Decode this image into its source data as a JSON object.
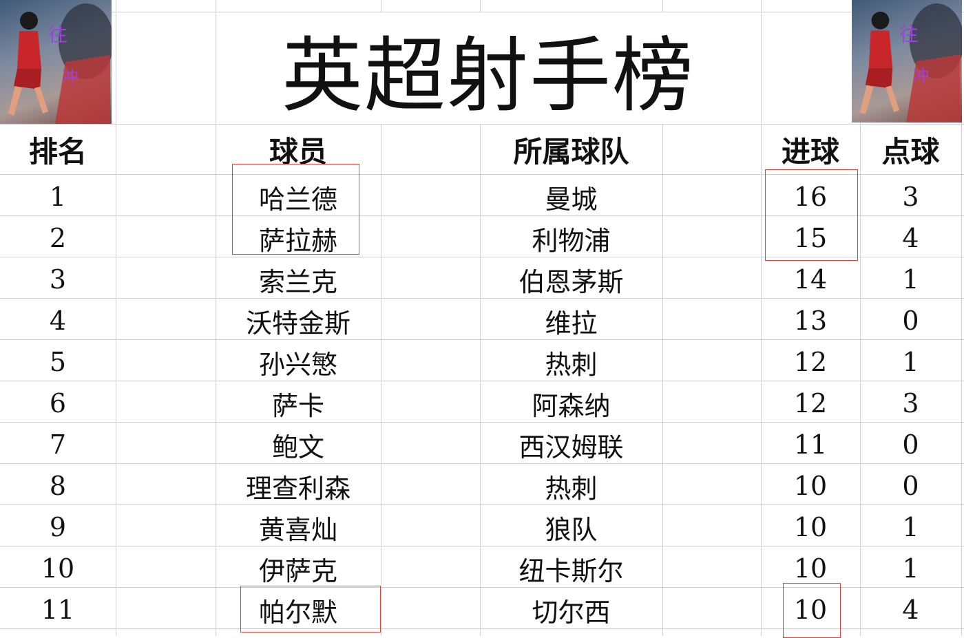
{
  "title": "英超射手榜",
  "headers": {
    "rank": "排名",
    "player": "球员",
    "team": "所属球队",
    "goals": "进球",
    "penalties": "点球"
  },
  "rows": [
    {
      "rank": "1",
      "player": "哈兰德",
      "team": "曼城",
      "goals": "16",
      "penalties": "3"
    },
    {
      "rank": "2",
      "player": "萨拉赫",
      "team": "利物浦",
      "goals": "15",
      "penalties": "4"
    },
    {
      "rank": "3",
      "player": "索兰克",
      "team": "伯恩茅斯",
      "goals": "14",
      "penalties": "1"
    },
    {
      "rank": "4",
      "player": "沃特金斯",
      "team": "维拉",
      "goals": "13",
      "penalties": "0"
    },
    {
      "rank": "5",
      "player": "孙兴慜",
      "team": "热刺",
      "goals": "12",
      "penalties": "1"
    },
    {
      "rank": "6",
      "player": "萨卡",
      "team": "阿森纳",
      "goals": "12",
      "penalties": "3"
    },
    {
      "rank": "7",
      "player": "鲍文",
      "team": "西汉姆联",
      "goals": "11",
      "penalties": "0"
    },
    {
      "rank": "8",
      "player": "理查利森",
      "team": "热刺",
      "goals": "10",
      "penalties": "0"
    },
    {
      "rank": "9",
      "player": "黄喜灿",
      "team": "狼队",
      "goals": "10",
      "penalties": "1"
    },
    {
      "rank": "10",
      "player": "伊萨克",
      "team": "纽卡斯尔",
      "goals": "10",
      "penalties": "1"
    },
    {
      "rank": "11",
      "player": "帕尔默",
      "team": "切尔西",
      "goals": "10",
      "penalties": "4"
    }
  ],
  "highlight_color": "#d9463f",
  "grid_color": "#cfcfd4"
}
